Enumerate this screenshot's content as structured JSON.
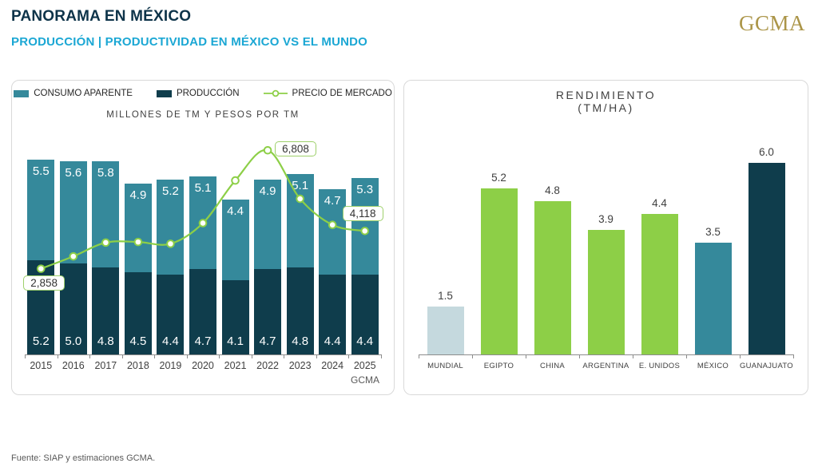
{
  "header": {
    "title": "PANORAMA EN MÉXICO",
    "subtitle": "PRODUCCIÓN | PRODUCTIVIDAD EN MÉXICO VS EL MUNDO",
    "logo": "GCMA"
  },
  "footer": {
    "source": "Fuente: SIAP y estimaciones GCMA."
  },
  "colors": {
    "teal": "#35899B",
    "navy": "#0F3D4C",
    "green": "#8DCF47",
    "light_blue_gray": "#C5D9DE",
    "accent_cyan": "#1BA7D4",
    "gold": "#AB9548",
    "label_gray": "#404040",
    "axis_gray": "#8C8C8C",
    "callout_border": "#9ED06B"
  },
  "chart_data": [
    {
      "type": "bar",
      "variant": "stacked-bars-with-line",
      "title": "MILLONES DE TM Y PESOS POR TM",
      "categories": [
        "2015",
        "2016",
        "2017",
        "2018",
        "2019",
        "2020",
        "2021",
        "2022",
        "2023",
        "2024",
        "2025"
      ],
      "x_note": "GCMA",
      "legend": [
        {
          "label": "CONSUMO APARENTE",
          "icon": "swatch",
          "color": "#35899B"
        },
        {
          "label": "PRODUCCIÓN",
          "icon": "swatch",
          "color": "#0F3D4C"
        },
        {
          "label": "PRECIO DE MERCADO",
          "icon": "line-marker",
          "color": "#8DCF47"
        }
      ],
      "series": [
        {
          "name": "PRODUCCIÓN",
          "color": "#0F3D4C",
          "values": [
            5.2,
            5.0,
            4.8,
            4.5,
            4.4,
            4.7,
            4.1,
            4.7,
            4.8,
            4.4,
            4.4
          ]
        },
        {
          "name": "CONSUMO APARENTE",
          "color": "#35899B",
          "values": [
            5.5,
            5.6,
            5.8,
            4.9,
            5.2,
            5.1,
            4.4,
            4.9,
            5.1,
            4.7,
            5.3
          ]
        }
      ],
      "line": {
        "name": "PRECIO DE MERCADO",
        "color": "#8DCF47",
        "values": [
          2858,
          3270,
          3730,
          3750,
          3690,
          4380,
          5800,
          6808,
          5190,
          4320,
          4118
        ],
        "axis_range": [
          0,
          7400
        ],
        "labels": [
          {
            "index": 0,
            "text": "2,858",
            "placement": "below"
          },
          {
            "index": 7,
            "text": "6,808",
            "placement": "right"
          },
          {
            "index": 10,
            "text": "4,118",
            "placement": "above"
          }
        ]
      },
      "bar_axis_max": 12.2
    },
    {
      "type": "bar",
      "title": "RENDIMIENTO",
      "subtitle": "(TM/HA)",
      "categories": [
        "MUNDIAL",
        "EGIPTO",
        "CHINA",
        "ARGENTINA",
        "E. UNIDOS",
        "MÉXICO",
        "GUANAJUATO"
      ],
      "values": [
        1.5,
        5.2,
        4.8,
        3.9,
        4.4,
        3.5,
        6.0
      ],
      "bar_colors": [
        "#C5D9DE",
        "#8DCF47",
        "#8DCF47",
        "#8DCF47",
        "#8DCF47",
        "#35899B",
        "#0F3D4C"
      ],
      "ylim": [
        0,
        6.5
      ]
    }
  ]
}
